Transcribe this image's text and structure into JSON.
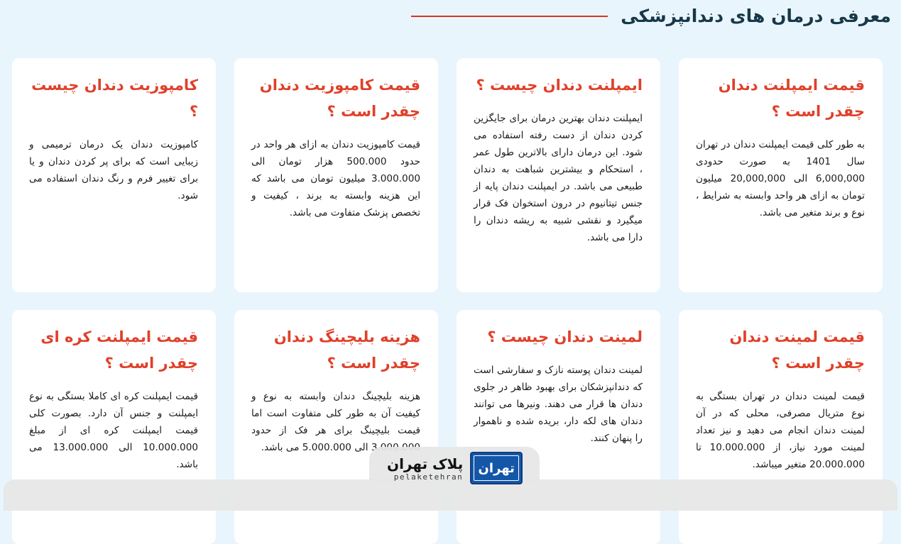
{
  "header": {
    "title": "معرفی درمان های دندانپزشکی",
    "accent": "#d9341f"
  },
  "cards": [
    {
      "title": "قیمت ایمپلنت دندان چقدر است ؟",
      "body": "به طور کلی قیمت ایمپلنت دندان در تهران سال 1401 به صورت حدودی 6,000,000 الی 20,000,000 میلیون تومان به ازای هر واحد وابسته به شرایط ، نوع و برند متغیر می باشد."
    },
    {
      "title": "ایمپلنت دندان چیست ؟",
      "body": "ایمپلنت دندان بهترین درمان برای جایگزین کردن دندان از دست رفته استفاده می شود. این درمان دارای بالاترین طول عمر ، استحکام و بیشترین شباهت به دندان طبیعی می باشد. در ایمپلنت دندان پایه از جنس تیتانیوم در درون استخوان فک قرار میگیرد و نقشی شبیه به ریشه دندان را دارا می باشد."
    },
    {
      "title": "قیمت کامپوزیت دندان چقدر است ؟",
      "body": "قیمت کامپوزیت دندان به ازای هر واحد در حدود 500.000 هزار تومان الی 3.000.000 میلیون تومان می باشد که این هزینه وابسته به برند ، کیفیت و تخصص پزشک متفاوت می باشد."
    },
    {
      "title": "کامپوزیت دندان چیست ؟",
      "body": "کامپوزیت دندان یک درمان ترمیمی و زیبایی است که برای پر کردن دندان و یا برای تغییر فرم و رنگ دندان استفاده می شود."
    },
    {
      "title": "قیمت لمینت دندان چقدر است ؟",
      "body": "قیمت لمینت دندان در تهران بستگی به نوع متریال مصرفی، محلی که در آن لمینت دندان انجام می دهید و نیز تعداد لمینت مورد نیاز، از 10.000.000 تا 20.000.000 متغیر میباشد."
    },
    {
      "title": "لمینت دندان چیست ؟",
      "body": "لمینت دندان پوسته نازک و سفارشی است که دندانپزشکان برای بهبود ظاهر در جلوی دندان ها قرار می دهند. ونیرها می توانند دندان های لکه دار، بریده شده و ناهموار را پنهان کنند."
    },
    {
      "title": "هزینه بلیچینگ دندان چقدر است ؟",
      "body": "هزینه بلیچینگ دندان وابسته به نوع و کیفیت آن به طور کلی متفاوت است اما قیمت بلیچینگ برای هر فک از حدود 3.000.000 الی 5.000.000 می باشد."
    },
    {
      "title": "قیمت ایمپلنت کره ای چقدر است ؟",
      "body": "قیمت ایمپلنت کره ای کاملا بستگی به نوع ایمپلنت و جنس آن دارد. بصورت کلی قیمت ایمپلنت کره ای از مبلغ 10.000.000 الی 13.000.000 می باشد."
    }
  ],
  "logo": {
    "fa": "پلاک تهران",
    "en": "pelaketehran",
    "plate": "تهران",
    "plate_color": "#1456a8"
  },
  "colors": {
    "card_title": "#e0402a",
    "background": "#e9f5fc"
  }
}
